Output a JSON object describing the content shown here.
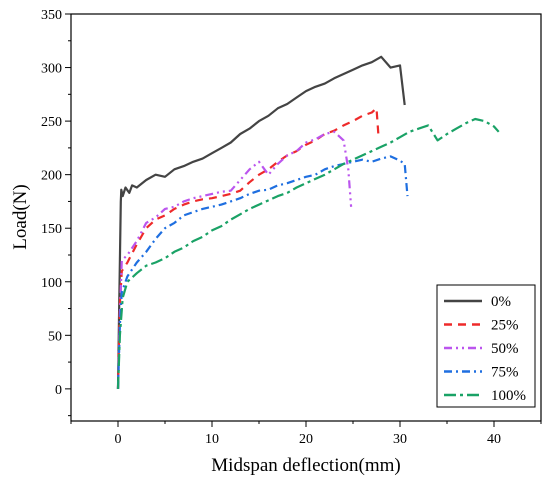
{
  "chart_data": {
    "type": "line",
    "xlabel": "Midspan deflection(mm)",
    "ylabel": "Load(N)",
    "xlim": [
      -5,
      45
    ],
    "ylim": [
      -30,
      350
    ],
    "x_ticks": [
      0,
      10,
      20,
      30,
      40
    ],
    "y_ticks": [
      0,
      50,
      100,
      150,
      200,
      250,
      300,
      350
    ],
    "grid": false,
    "legend_position": "bottom-right",
    "series": [
      {
        "name": "0%",
        "color": "#444444",
        "dash": "solid",
        "points": [
          [
            0,
            0
          ],
          [
            0.1,
            60
          ],
          [
            0.2,
            120
          ],
          [
            0.3,
            175
          ],
          [
            0.35,
            186
          ],
          [
            0.5,
            180
          ],
          [
            0.8,
            188
          ],
          [
            1.2,
            183
          ],
          [
            1.5,
            190
          ],
          [
            2,
            188
          ],
          [
            3,
            195
          ],
          [
            4,
            200
          ],
          [
            5,
            198
          ],
          [
            6,
            205
          ],
          [
            7,
            208
          ],
          [
            8,
            212
          ],
          [
            9,
            215
          ],
          [
            10,
            220
          ],
          [
            11,
            225
          ],
          [
            12,
            230
          ],
          [
            13,
            238
          ],
          [
            14,
            243
          ],
          [
            15,
            250
          ],
          [
            16,
            255
          ],
          [
            17,
            262
          ],
          [
            18,
            266
          ],
          [
            19,
            272
          ],
          [
            20,
            278
          ],
          [
            21,
            282
          ],
          [
            22,
            285
          ],
          [
            23,
            290
          ],
          [
            24,
            294
          ],
          [
            25,
            298
          ],
          [
            26,
            302
          ],
          [
            27,
            305
          ],
          [
            28,
            310
          ],
          [
            29,
            300
          ],
          [
            30,
            302
          ],
          [
            30.5,
            265
          ]
        ]
      },
      {
        "name": "25%",
        "color": "#ee2a2a",
        "dash": "8,6",
        "points": [
          [
            0,
            0
          ],
          [
            0.2,
            80
          ],
          [
            0.4,
            110
          ],
          [
            1,
            118
          ],
          [
            2,
            135
          ],
          [
            3,
            150
          ],
          [
            4,
            158
          ],
          [
            5,
            162
          ],
          [
            6,
            168
          ],
          [
            7,
            172
          ],
          [
            8,
            175
          ],
          [
            9,
            177
          ],
          [
            10,
            178
          ],
          [
            11,
            180
          ],
          [
            12,
            182
          ],
          [
            13,
            185
          ],
          [
            14,
            193
          ],
          [
            15,
            200
          ],
          [
            16,
            205
          ],
          [
            17,
            212
          ],
          [
            18,
            218
          ],
          [
            19,
            222
          ],
          [
            20,
            228
          ],
          [
            21,
            232
          ],
          [
            22,
            238
          ],
          [
            23,
            241
          ],
          [
            24,
            246
          ],
          [
            25,
            250
          ],
          [
            26,
            255
          ],
          [
            27,
            258
          ],
          [
            27.5,
            262
          ],
          [
            27.7,
            237
          ]
        ]
      },
      {
        "name": "50%",
        "color": "#bb55ee",
        "dash": "8,4,2,4,2,4",
        "points": [
          [
            0,
            0
          ],
          [
            0.2,
            70
          ],
          [
            0.4,
            120
          ],
          [
            1,
            125
          ],
          [
            2,
            138
          ],
          [
            3,
            155
          ],
          [
            4,
            160
          ],
          [
            5,
            168
          ],
          [
            6,
            170
          ],
          [
            7,
            175
          ],
          [
            8,
            178
          ],
          [
            9,
            180
          ],
          [
            10,
            182
          ],
          [
            11,
            184
          ],
          [
            12,
            185
          ],
          [
            13,
            195
          ],
          [
            14,
            205
          ],
          [
            15,
            212
          ],
          [
            16,
            200
          ],
          [
            17,
            210
          ],
          [
            18,
            218
          ],
          [
            19,
            222
          ],
          [
            20,
            230
          ],
          [
            21,
            233
          ],
          [
            22,
            238
          ],
          [
            23,
            240
          ],
          [
            24,
            232
          ],
          [
            24.5,
            205
          ],
          [
            24.8,
            170
          ]
        ]
      },
      {
        "name": "75%",
        "color": "#1f6fe0",
        "dash": "8,4,2,4",
        "points": [
          [
            0,
            0
          ],
          [
            0.2,
            60
          ],
          [
            0.4,
            90
          ],
          [
            1,
            105
          ],
          [
            2,
            118
          ],
          [
            3,
            128
          ],
          [
            4,
            140
          ],
          [
            5,
            150
          ],
          [
            6,
            155
          ],
          [
            7,
            162
          ],
          [
            8,
            165
          ],
          [
            9,
            168
          ],
          [
            10,
            170
          ],
          [
            11,
            172
          ],
          [
            12,
            175
          ],
          [
            13,
            178
          ],
          [
            14,
            182
          ],
          [
            15,
            185
          ],
          [
            16,
            186
          ],
          [
            17,
            190
          ],
          [
            18,
            192
          ],
          [
            19,
            195
          ],
          [
            20,
            198
          ],
          [
            21,
            200
          ],
          [
            22,
            205
          ],
          [
            23,
            208
          ],
          [
            24,
            210
          ],
          [
            25,
            212
          ],
          [
            26,
            214
          ],
          [
            27,
            212
          ],
          [
            28,
            215
          ],
          [
            29,
            217
          ],
          [
            30,
            213
          ],
          [
            30.5,
            210
          ],
          [
            30.8,
            180
          ]
        ]
      },
      {
        "name": "100%",
        "color": "#1aa266",
        "dash": "12,4,3,4",
        "points": [
          [
            0,
            0
          ],
          [
            0.2,
            50
          ],
          [
            0.5,
            85
          ],
          [
            1,
            100
          ],
          [
            2,
            108
          ],
          [
            3,
            115
          ],
          [
            4,
            118
          ],
          [
            5,
            122
          ],
          [
            6,
            128
          ],
          [
            7,
            132
          ],
          [
            8,
            138
          ],
          [
            9,
            142
          ],
          [
            10,
            148
          ],
          [
            11,
            152
          ],
          [
            12,
            158
          ],
          [
            13,
            163
          ],
          [
            14,
            168
          ],
          [
            15,
            172
          ],
          [
            16,
            176
          ],
          [
            17,
            180
          ],
          [
            18,
            183
          ],
          [
            19,
            188
          ],
          [
            20,
            192
          ],
          [
            21,
            196
          ],
          [
            22,
            200
          ],
          [
            23,
            205
          ],
          [
            24,
            210
          ],
          [
            25,
            214
          ],
          [
            26,
            218
          ],
          [
            27,
            222
          ],
          [
            28,
            226
          ],
          [
            29,
            230
          ],
          [
            30,
            235
          ],
          [
            31,
            240
          ],
          [
            32,
            243
          ],
          [
            33,
            246
          ],
          [
            34,
            232
          ],
          [
            35,
            238
          ],
          [
            36,
            243
          ],
          [
            37,
            248
          ],
          [
            38,
            252
          ],
          [
            39,
            250
          ],
          [
            40,
            245
          ],
          [
            40.5,
            240
          ]
        ]
      }
    ]
  }
}
